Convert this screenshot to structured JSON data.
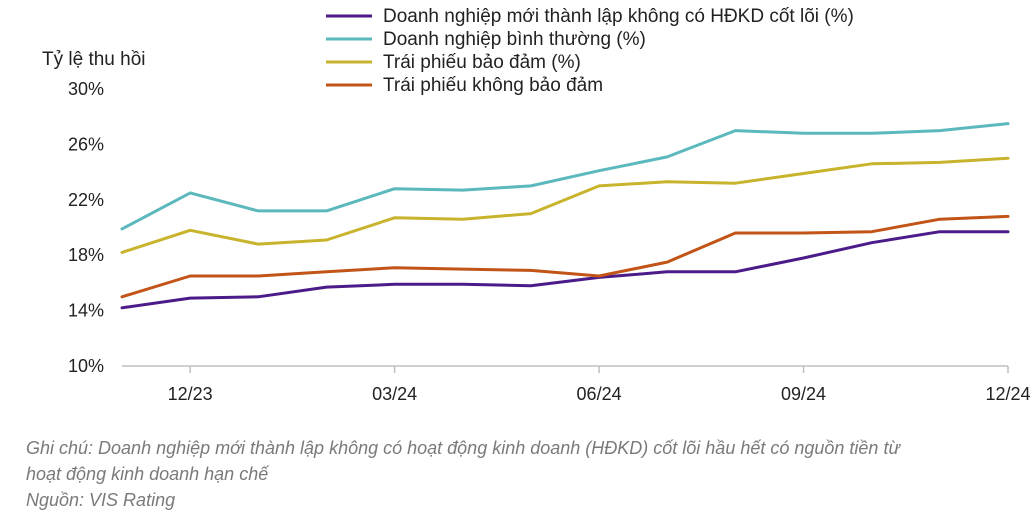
{
  "chart_data": {
    "type": "line",
    "ylabel": "Tỷ lệ thu hồi",
    "xlabel": "",
    "title": "",
    "ylim": [
      10,
      30
    ],
    "yticks": [
      "10%",
      "14%",
      "18%",
      "22%",
      "26%",
      "30%"
    ],
    "ytick_values": [
      10,
      14,
      18,
      22,
      26,
      30
    ],
    "x_tick_labels": [
      "12/23",
      "03/24",
      "06/24",
      "09/24",
      "12/24"
    ],
    "x_tick_indices": [
      1,
      4,
      7,
      10,
      13
    ],
    "x": [
      "11/23",
      "12/23",
      "01/24",
      "02/24",
      "03/24",
      "04/24",
      "05/24",
      "06/24",
      "07/24",
      "08/24",
      "09/24",
      "10/24",
      "11/24",
      "12/24"
    ],
    "legend_position": "top",
    "series": [
      {
        "name": "Doanh nghiệp mới thành lập không có HĐKD cốt lõi (%)",
        "color": "#4b1b8a",
        "values": [
          14.2,
          14.9,
          15.0,
          15.7,
          15.9,
          15.9,
          15.8,
          16.4,
          16.8,
          16.8,
          17.8,
          18.9,
          19.7,
          19.7
        ]
      },
      {
        "name": "Doanh nghiệp bình thường (%)",
        "color": "#5bb8bd",
        "values": [
          19.9,
          22.5,
          21.2,
          21.2,
          22.8,
          22.7,
          23.0,
          24.1,
          25.1,
          27.0,
          26.8,
          26.8,
          27.0,
          27.5
        ]
      },
      {
        "name": "Trái phiếu bảo đảm (%)",
        "color": "#c8b32c",
        "values": [
          18.2,
          19.8,
          18.8,
          19.1,
          20.7,
          20.6,
          21.0,
          23.0,
          23.3,
          23.2,
          23.9,
          24.6,
          24.7,
          25.0
        ]
      },
      {
        "name": "Trái phiếu không bảo đảm",
        "color": "#c25418",
        "values": [
          15.0,
          16.5,
          16.5,
          16.8,
          17.1,
          17.0,
          16.9,
          16.5,
          17.5,
          19.6,
          19.6,
          19.7,
          20.6,
          20.8
        ]
      }
    ]
  },
  "notes": {
    "line1": "Ghi chú: Doanh nghiệp mới thành lập không có hoạt động kinh doanh (HĐKD) cốt lõi hầu hết có nguồn tiền từ",
    "line2": "hoạt động kinh doanh hạn chế",
    "source": "Nguồn: VIS Rating"
  }
}
